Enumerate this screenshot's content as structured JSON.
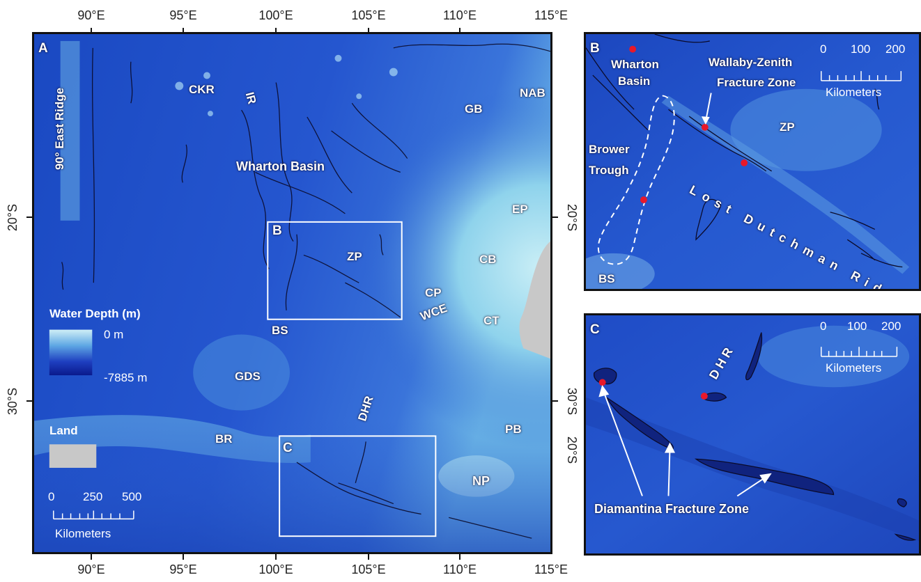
{
  "panelA": {
    "letter": "A",
    "top_ticks": [
      "90°E",
      "95°E",
      "100°E",
      "105°E",
      "110°E",
      "115°E"
    ],
    "bottom_ticks": [
      "90°E",
      "95°E",
      "100°E",
      "105°E",
      "110°E",
      "115°E"
    ],
    "left_ticks": [
      "20°S",
      "30°S"
    ],
    "right_ticks": [
      "20°S",
      "30°S",
      "20°S"
    ],
    "labels": {
      "east_ridge": "90° East Ridge",
      "ckr": "CKR",
      "ir": "IR",
      "wharton": "Wharton Basin",
      "gb": "GB",
      "nab": "NAB",
      "ep": "EP",
      "zp": "ZP",
      "cb": "CB",
      "cp": "CP",
      "wce": "WCE",
      "ct": "CT",
      "bs": "BS",
      "gds": "GDS",
      "dhr": "DHR",
      "pb": "PB",
      "br": "BR",
      "np": "NP",
      "box_b": "B",
      "box_c": "C"
    },
    "legend": {
      "title": "Water Depth (m)",
      "max": "0 m",
      "min": "-7885 m",
      "land": "Land",
      "colors": {
        "shallow": "#cfeef6",
        "deep": "#0a1a8c",
        "land": "#c8c8c8"
      }
    },
    "scale": {
      "labels": [
        "0",
        "250",
        "500"
      ],
      "unit": "Kilometers"
    }
  },
  "panelB": {
    "letter": "B",
    "labels": {
      "wharton_1": "Wharton",
      "wharton_2": "Basin",
      "wz_1": "Wallaby-Zenith",
      "wz_2": "Fracture Zone",
      "zp": "ZP",
      "brower_1": "Brower",
      "brower_2": "Trough",
      "ldr": "Lost Dutchman Ridge",
      "bs": "BS"
    },
    "scale": {
      "labels": [
        "0",
        "100",
        "200"
      ],
      "unit": "Kilometers"
    }
  },
  "panelC": {
    "letter": "C",
    "labels": {
      "dhr": "D H R",
      "dfz": "Diamantina Fracture Zone"
    },
    "scale": {
      "labels": [
        "0",
        "100",
        "200"
      ],
      "unit": "Kilometers"
    }
  },
  "colors": {
    "ocean": "#1d4fc4",
    "ocean_deep": "#0d2a9a",
    "shelf": "#8fd3ec",
    "land": "#c8c8c8",
    "marker": "#e8182a"
  }
}
